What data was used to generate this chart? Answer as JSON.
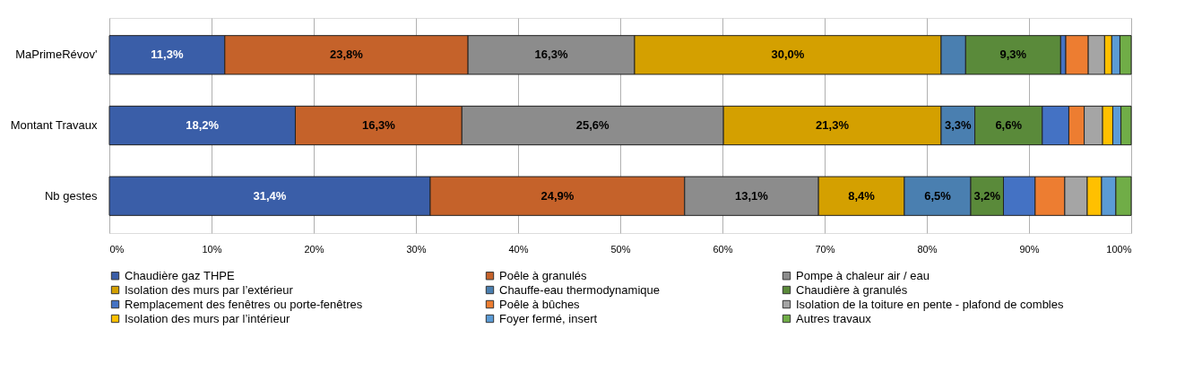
{
  "chart_data": {
    "type": "bar",
    "orientation": "horizontal",
    "stacked": true,
    "categories": [
      "MaPrimeRévov'",
      "Montant Travaux",
      "Nb gestes"
    ],
    "xlim": [
      0,
      100
    ],
    "xticks": [
      {
        "value": 0,
        "label": "0%"
      },
      {
        "value": 10,
        "label": "10%"
      },
      {
        "value": 20,
        "label": "20%"
      },
      {
        "value": 30,
        "label": "30%"
      },
      {
        "value": 40,
        "label": "40%"
      },
      {
        "value": 50,
        "label": "50%"
      },
      {
        "value": 60,
        "label": "60%"
      },
      {
        "value": 70,
        "label": "70%"
      },
      {
        "value": 80,
        "label": "80%"
      },
      {
        "value": 90,
        "label": "90%"
      },
      {
        "value": 100,
        "label": "100%"
      }
    ],
    "grid": "x",
    "legend": "bottom",
    "series": [
      {
        "name": "Chaudière gaz THPE",
        "color": "#3a5ea8",
        "values": [
          11.3,
          18.2,
          31.4
        ],
        "value_labels": [
          "11,3%",
          "18,2%",
          "31,4%"
        ]
      },
      {
        "name": "Poêle à granulés",
        "color": "#c5622a",
        "values": [
          23.8,
          16.3,
          24.9
        ],
        "value_labels": [
          "23,8%",
          "16,3%",
          "24,9%"
        ]
      },
      {
        "name": "Pompe à chaleur air / eau",
        "color": "#8c8c8c",
        "values": [
          16.3,
          25.6,
          13.1
        ],
        "value_labels": [
          "16,3%",
          "25,6%",
          "13,1%"
        ]
      },
      {
        "name": "Isolation des murs par l’extérieur",
        "color": "#d4a000",
        "values": [
          30.0,
          21.3,
          8.4
        ],
        "value_labels": [
          "30,0%",
          "21,3%",
          "8,4%"
        ]
      },
      {
        "name": "Chauffe-eau thermodynamique",
        "color": "#4a7fb0",
        "values": [
          2.4,
          3.3,
          6.5
        ],
        "value_labels": [
          null,
          "3,3%",
          "6,5%"
        ]
      },
      {
        "name": "Chaudière à granulés",
        "color": "#5a8a3a",
        "values": [
          9.3,
          6.6,
          3.2
        ],
        "value_labels": [
          "9,3%",
          "6,6%",
          "3,2%"
        ]
      },
      {
        "name": "Remplacement des fenêtres ou porte-fenêtres",
        "color": "#4472c4",
        "values": [
          0.5,
          2.6,
          3.1
        ]
      },
      {
        "name": "Poêle à bûches",
        "color": "#ed7d31",
        "values": [
          2.2,
          1.5,
          2.9
        ]
      },
      {
        "name": "Isolation de la toiture en pente - plafond de combles",
        "color": "#a5a5a5",
        "values": [
          1.6,
          1.8,
          2.2
        ]
      },
      {
        "name": "Isolation des murs par l’intérieur",
        "color": "#ffc000",
        "values": [
          0.7,
          1.0,
          1.4
        ]
      },
      {
        "name": "Foyer fermé, insert",
        "color": "#5b9bd5",
        "values": [
          0.8,
          0.8,
          1.4
        ]
      },
      {
        "name": "Autres travaux",
        "color": "#70ad47",
        "values": [
          1.1,
          1.0,
          1.5
        ]
      }
    ]
  }
}
